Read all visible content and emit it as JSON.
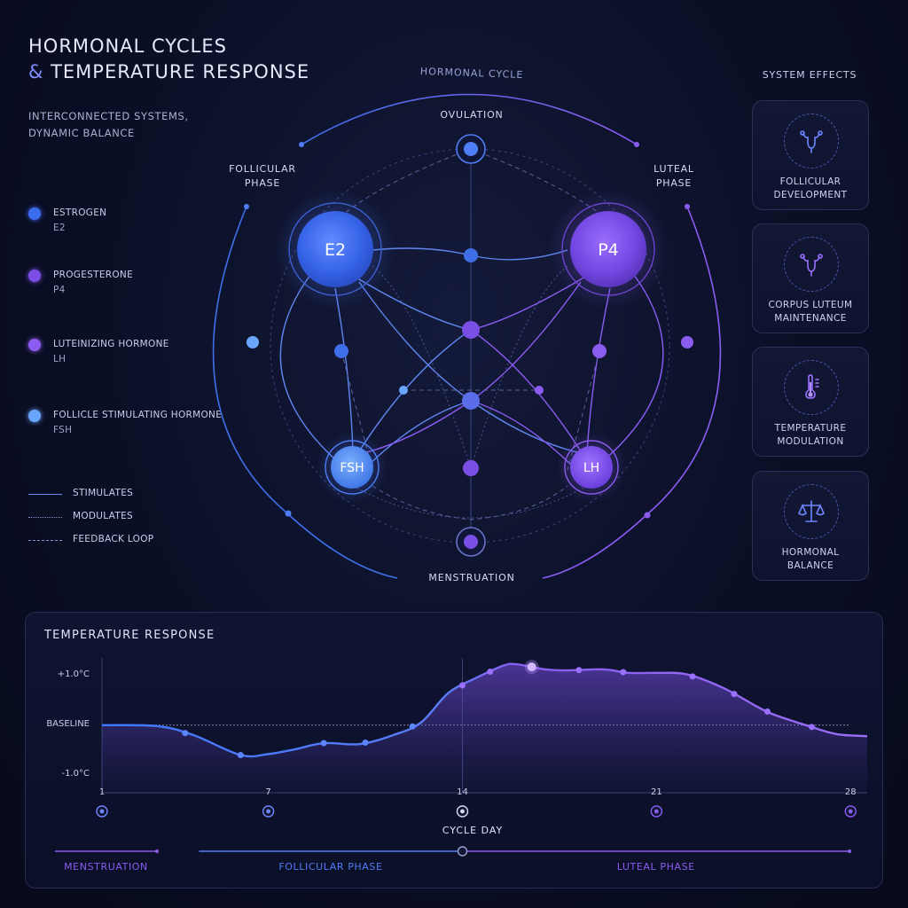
{
  "header": {
    "title_line1": "HORMONAL CYCLES",
    "title_amp": "&",
    "title_line2": "TEMPERATURE RESPONSE",
    "subtitle_line1": "INTERCONNECTED SYSTEMS,",
    "subtitle_line2": "DYNAMIC BALANCE"
  },
  "legend": {
    "hormones": [
      {
        "name": "ESTROGEN",
        "abbr": "E2",
        "color": "#3b6cf0"
      },
      {
        "name": "PROGESTERONE",
        "abbr": "P4",
        "color": "#7b4fe6"
      },
      {
        "name": "LUTEINIZING HORMONE",
        "abbr": "LH",
        "color": "#8c5cf0"
      },
      {
        "name": "FOLLICLE STIMULATING HORMONE",
        "abbr": "FSH",
        "color": "#6aa6ff"
      }
    ],
    "lines": [
      {
        "label": "STIMULATES",
        "style": "solid"
      },
      {
        "label": "MODULATES",
        "style": "dotted"
      },
      {
        "label": "FEEDBACK LOOP",
        "style": "dashed"
      }
    ]
  },
  "diagram": {
    "arc_label": "HORMONAL CYCLE",
    "phases": {
      "ovulation": "OVULATION",
      "follicular_line1": "FOLLICULAR",
      "follicular_line2": "PHASE",
      "luteal_line1": "LUTEAL",
      "luteal_line2": "PHASE",
      "menstruation": "MENSTRUATION"
    },
    "nodes": {
      "e2": "E2",
      "p4": "P4",
      "fsh": "FSH",
      "lh": "LH"
    }
  },
  "system_effects": {
    "title": "SYSTEM EFFECTS",
    "cards": [
      {
        "icon": "uterus-icon",
        "line1": "FOLLICULAR",
        "line2": "DEVELOPMENT"
      },
      {
        "icon": "uterus-icon",
        "line1": "CORPUS LUTEUM",
        "line2": "MAINTENANCE"
      },
      {
        "icon": "thermometer-icon",
        "line1": "TEMPERATURE",
        "line2": "MODULATION"
      },
      {
        "icon": "balance-scale-icon",
        "line1": "HORMONAL",
        "line2": "BALANCE"
      }
    ]
  },
  "chart_data": {
    "type": "line",
    "title": "TEMPERATURE RESPONSE",
    "xlabel": "CYCLE DAY",
    "x_ticks": [
      1,
      7,
      14,
      21,
      28
    ],
    "xlim": [
      1,
      28.6
    ],
    "ylim": [
      -1.25,
      1.35
    ],
    "y_ticks": [
      {
        "value": 1.0,
        "label": "+1.0°C"
      },
      {
        "value": 0.0,
        "label": "BASELINE"
      },
      {
        "value": -1.0,
        "label": "-1.0°C"
      }
    ],
    "series": [
      {
        "x": [
          1,
          3,
          4.3,
          6,
          7,
          8,
          9,
          10.3,
          11.5,
          12.5,
          13.5,
          14.5,
          15.5,
          16,
          17,
          17.8,
          19.1,
          20,
          21,
          22.1,
          23.4,
          24.6,
          25.2,
          26.5,
          27.5,
          28.6
        ],
        "y": [
          0.0,
          -0.02,
          -0.2,
          -0.6,
          -0.58,
          -0.48,
          -0.36,
          -0.38,
          -0.2,
          0.05,
          0.65,
          0.95,
          1.2,
          1.22,
          1.12,
          1.1,
          1.12,
          1.05,
          1.05,
          1.02,
          0.75,
          0.38,
          0.22,
          -0.02,
          -0.18,
          -0.22
        ]
      }
    ],
    "markers_x": [
      4,
      6,
      9,
      10.5,
      12.2,
      14,
      15,
      16.5,
      18.2,
      19.8,
      22.3,
      23.8,
      25,
      26.6
    ],
    "highlight_x": 16.5,
    "phases": [
      {
        "name": "MENSTRUATION",
        "from": 1,
        "to": 3.5,
        "color": "#8a5cf0"
      },
      {
        "name": "FOLLICULAR PHASE",
        "from": 4.5,
        "to": 14,
        "color": "#4f7df5"
      },
      {
        "name": "LUTEAL PHASE",
        "from": 14,
        "to": 28,
        "color": "#8a5cf0"
      }
    ],
    "grid": false
  }
}
